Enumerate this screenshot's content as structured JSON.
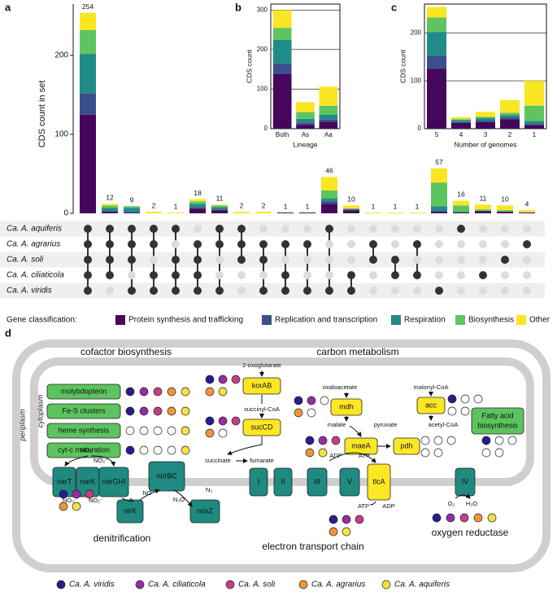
{
  "panel_labels": [
    "a",
    "b",
    "c",
    "d"
  ],
  "chart_data": [
    {
      "type": "upset",
      "ylabel": "CDS count in set",
      "ylim": [
        0,
        265
      ],
      "yticks": [
        0,
        100,
        200
      ],
      "totals": [
        254,
        12,
        9,
        2,
        1,
        18,
        11,
        2,
        2,
        1,
        1,
        46,
        10,
        1,
        1,
        1,
        57,
        16,
        11,
        10,
        4
      ],
      "legend_title": "Gene classification:",
      "series": [
        {
          "name": "Protein synthesis and trafficking",
          "color": "#45075b",
          "values": [
            125,
            2,
            1,
            0,
            0,
            6,
            4,
            0,
            0,
            1,
            1,
            12,
            4,
            0,
            0,
            0,
            2,
            1,
            3,
            2,
            1
          ]
        },
        {
          "name": "Replication and transcription",
          "color": "#3b4f8c",
          "values": [
            27,
            1,
            0,
            0,
            0,
            2,
            1,
            0,
            0,
            0,
            0,
            3,
            1,
            0,
            0,
            0,
            1,
            0,
            0,
            0,
            0
          ]
        },
        {
          "name": "Respiration",
          "color": "#1f8c87",
          "values": [
            50,
            4,
            6,
            0,
            0,
            4,
            3,
            0,
            0,
            0,
            0,
            4,
            1,
            0,
            0,
            0,
            6,
            1,
            0,
            0,
            0
          ]
        },
        {
          "name": "Biosynthesis",
          "color": "#5ec460",
          "values": [
            30,
            3,
            2,
            0,
            0,
            3,
            2,
            0,
            0,
            0,
            0,
            10,
            0,
            0,
            0,
            0,
            30,
            8,
            2,
            2,
            0
          ]
        },
        {
          "name": "Other",
          "color": "#fae622",
          "values": [
            22,
            2,
            0,
            2,
            1,
            3,
            1,
            2,
            2,
            0,
            0,
            17,
            4,
            1,
            1,
            1,
            18,
            6,
            6,
            6,
            3
          ]
        }
      ],
      "sets": [
        "Ca. A. aquiferis",
        "Ca. A. agrarius",
        "Ca. A. soli",
        "Ca. A. ciliaticola",
        "Ca. A. viridis"
      ],
      "membership": [
        [
          1,
          1,
          1,
          1,
          1,
          0,
          1,
          1,
          0,
          0,
          0,
          1,
          0,
          0,
          0,
          0,
          0,
          1,
          0,
          0,
          0
        ],
        [
          1,
          1,
          1,
          1,
          0,
          1,
          1,
          1,
          1,
          1,
          1,
          0,
          0,
          1,
          0,
          1,
          0,
          0,
          0,
          0,
          1
        ],
        [
          1,
          1,
          1,
          0,
          1,
          1,
          0,
          1,
          1,
          0,
          0,
          0,
          0,
          1,
          1,
          0,
          0,
          0,
          0,
          1,
          0
        ],
        [
          1,
          1,
          0,
          1,
          1,
          1,
          0,
          0,
          0,
          1,
          0,
          0,
          1,
          0,
          1,
          1,
          0,
          0,
          1,
          0,
          0
        ],
        [
          1,
          0,
          1,
          1,
          1,
          1,
          1,
          0,
          1,
          1,
          1,
          1,
          1,
          0,
          0,
          0,
          1,
          0,
          0,
          0,
          0
        ]
      ]
    },
    {
      "type": "bar",
      "stacked": true,
      "xlabel": "Lineage",
      "ylabel": "CDS count",
      "categories": [
        "Both",
        "As",
        "Aa"
      ],
      "ylim": [
        0,
        315
      ],
      "yticks": [
        0,
        100,
        200,
        300
      ],
      "grid": true,
      "series": [
        {
          "values": [
            138,
            10,
            18
          ]
        },
        {
          "values": [
            27,
            5,
            5
          ]
        },
        {
          "values": [
            60,
            10,
            12
          ]
        },
        {
          "values": [
            30,
            17,
            23
          ]
        },
        {
          "values": [
            45,
            25,
            48
          ]
        }
      ]
    },
    {
      "type": "bar",
      "stacked": true,
      "xlabel": "Number of genomes",
      "ylabel": "CDS count",
      "categories": [
        "5",
        "4",
        "3",
        "2",
        "1"
      ],
      "ylim": [
        0,
        260
      ],
      "yticks": [
        0,
        100,
        200
      ],
      "grid": true,
      "series": [
        {
          "values": [
            125,
            12,
            14,
            20,
            8
          ]
        },
        {
          "values": [
            27,
            2,
            3,
            3,
            2
          ]
        },
        {
          "values": [
            50,
            4,
            5,
            5,
            6
          ]
        },
        {
          "values": [
            30,
            2,
            3,
            5,
            32
          ]
        },
        {
          "values": [
            22,
            4,
            10,
            27,
            52
          ]
        }
      ]
    }
  ],
  "diagram": {
    "periplasm": "periplasm",
    "cytoplasm": "cytoplasm",
    "sections": {
      "cofactor": "cofactor biosynthesis",
      "carbon": "carbon metabolism",
      "denitrification": "denitrification",
      "etc": "electron transport chain",
      "oxygen": "oxygen reductase"
    },
    "organisms": [
      {
        "name": "Ca. A. viridis",
        "color": "#2a1b8f"
      },
      {
        "name": "Ca. A. ciliaticola",
        "color": "#9a2aaa"
      },
      {
        "name": "Ca. A. soli",
        "color": "#c13f86"
      },
      {
        "name": "Ca. A. agrarius",
        "color": "#f0963a"
      },
      {
        "name": "Ca. A. aquiferis",
        "color": "#f6e045"
      }
    ],
    "cofactor_genes": [
      {
        "label": "molybdopterin",
        "presence": [
          1,
          1,
          1,
          1,
          1
        ]
      },
      {
        "label": "Fe-S clusters",
        "presence": [
          1,
          1,
          1,
          1,
          1
        ]
      },
      {
        "label": "heme synthesis",
        "presence": [
          0,
          0,
          0,
          0,
          1
        ]
      },
      {
        "label": "cyt-c maturation",
        "presence": [
          1,
          0,
          0,
          0,
          1
        ]
      }
    ],
    "enzymes": [
      {
        "label": "korAB",
        "presence": [
          1,
          1,
          1,
          1,
          1
        ]
      },
      {
        "label": "sucCD",
        "presence": [
          1,
          1,
          1,
          1,
          0
        ]
      },
      {
        "label": "mdh",
        "presence": [
          1,
          1,
          0,
          1,
          0
        ]
      },
      {
        "label": "maeA",
        "presence": [
          1,
          1,
          1,
          1,
          1
        ]
      },
      {
        "label": "pdh",
        "presence": [
          0,
          0,
          0,
          0,
          0
        ]
      },
      {
        "label": "acc",
        "presence": [
          1,
          0,
          0,
          0,
          0
        ]
      },
      {
        "label_lines": [
          "Fatty acid",
          "biosynthesis"
        ],
        "presence": [
          1,
          0,
          0,
          0,
          0
        ]
      }
    ],
    "metabolites": [
      "2-oxoglutarate",
      "succinyl-CoA",
      "succinate",
      "fumarate",
      "oxaloacetate",
      "malate",
      "pyruvate",
      "malonyl-CoA",
      "acetyl-CoA"
    ],
    "denitrification": {
      "proteins": [
        "narT",
        "narK",
        "narGHI",
        "norBC",
        "nirK",
        "nosZ"
      ],
      "compounds": [
        "NO₃⁻",
        "NO₂⁻",
        "NO₃⁻",
        "NO₂⁻",
        "NO",
        "N₂O",
        "N₂"
      ],
      "presence": [
        1,
        1,
        1,
        1,
        1
      ]
    },
    "etc": {
      "complexes": [
        "I",
        "II",
        "III",
        "V",
        "tlcA"
      ],
      "compounds": [
        "ADP",
        "ATP",
        "ATP",
        "ADP"
      ],
      "presence": [
        1,
        1,
        1,
        1,
        1
      ]
    },
    "oxygen": {
      "complexes": [
        "IV"
      ],
      "compounds": [
        "O₂",
        "H₂O"
      ],
      "presence": [
        1,
        1,
        1,
        1,
        1
      ]
    }
  }
}
